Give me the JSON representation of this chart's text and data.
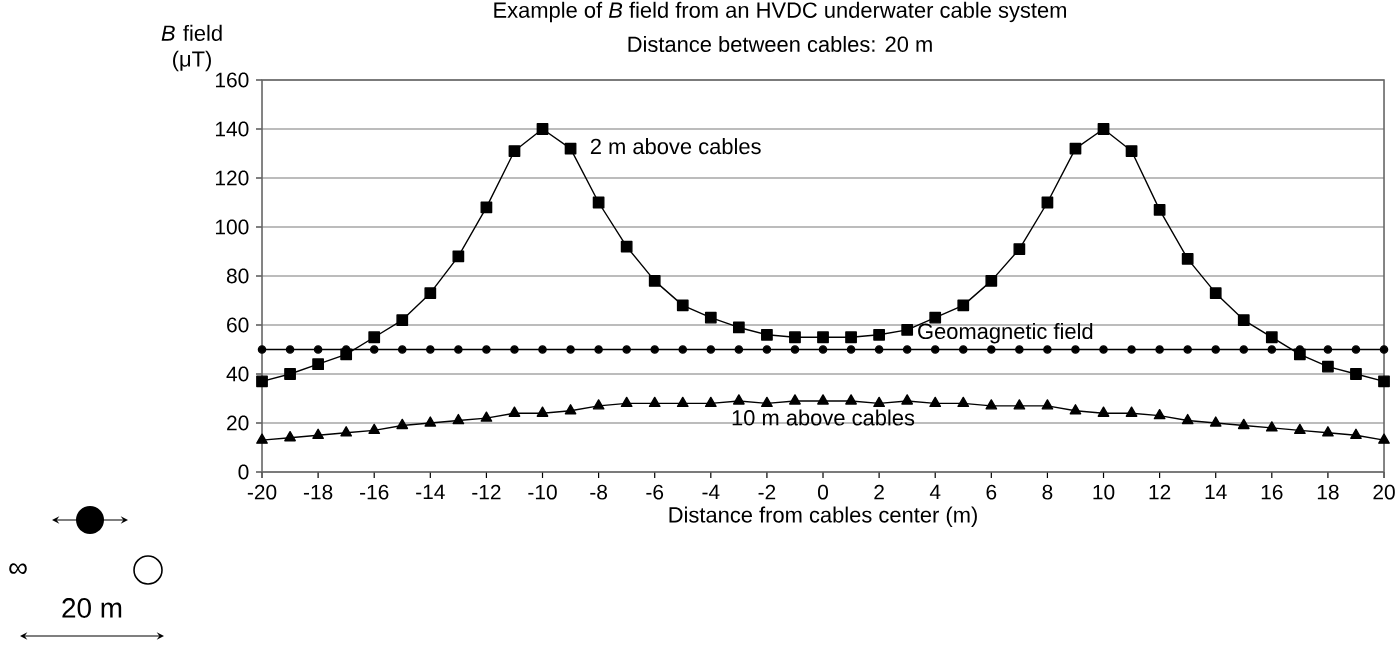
{
  "chart_data": {
    "type": "line",
    "title": "Example of *B* field from an HVDC underwater cable system",
    "subtitle": "Distance between cables: 20 m",
    "xlabel": "Distance from cables center (m)",
    "ylabel": "*B* field (μT)",
    "x": [
      -20,
      -19,
      -18,
      -17,
      -16,
      -15,
      -14,
      -13,
      -12,
      -11,
      -10,
      -9,
      -8,
      -7,
      -6,
      -5,
      -4,
      -3,
      -2,
      -1,
      0,
      1,
      2,
      3,
      4,
      5,
      6,
      7,
      8,
      9,
      10,
      11,
      12,
      13,
      14,
      15,
      16,
      17,
      18,
      19,
      20
    ],
    "series": [
      {
        "name": "2 m above cables",
        "color": "#000000",
        "marker": "square",
        "values": [
          37,
          40,
          44,
          48,
          55,
          62,
          73,
          88,
          108,
          131,
          140,
          132,
          110,
          92,
          78,
          68,
          63,
          59,
          56,
          55,
          55,
          55,
          56,
          58,
          63,
          68,
          78,
          91,
          110,
          132,
          140,
          131,
          107,
          87,
          73,
          62,
          55,
          48,
          43,
          40,
          37
        ]
      },
      {
        "name": "Geomagnetic field",
        "color": "#000000",
        "marker": "circle",
        "values": [
          50,
          50,
          50,
          50,
          50,
          50,
          50,
          50,
          50,
          50,
          50,
          50,
          50,
          50,
          50,
          50,
          50,
          50,
          50,
          50,
          50,
          50,
          50,
          50,
          50,
          50,
          50,
          50,
          50,
          50,
          50,
          50,
          50,
          50,
          50,
          50,
          50,
          50,
          50,
          50,
          50
        ]
      },
      {
        "name": "10 m above cables",
        "color": "#000000",
        "marker": "triangle",
        "values": [
          13,
          14,
          15,
          16,
          17,
          19,
          20,
          21,
          22,
          24,
          24,
          25,
          27,
          28,
          28,
          28,
          28,
          29,
          28,
          29,
          29,
          29,
          28,
          29,
          28,
          28,
          27,
          27,
          27,
          25,
          24,
          24,
          23,
          21,
          20,
          19,
          18,
          17,
          16,
          15,
          13
        ]
      }
    ],
    "xlim": [
      -20,
      20
    ],
    "xticks": [
      -20,
      -18,
      -16,
      -14,
      -12,
      -10,
      -8,
      -6,
      -4,
      -2,
      0,
      2,
      4,
      6,
      8,
      10,
      12,
      14,
      16,
      18,
      20
    ],
    "ylim": [
      0,
      160
    ],
    "yticks": [
      0,
      20,
      40,
      60,
      80,
      100,
      120,
      140,
      160
    ],
    "grid": "y",
    "legend": false,
    "line_style": "solid",
    "annotations": [
      "∞",
      "20 m"
    ]
  }
}
